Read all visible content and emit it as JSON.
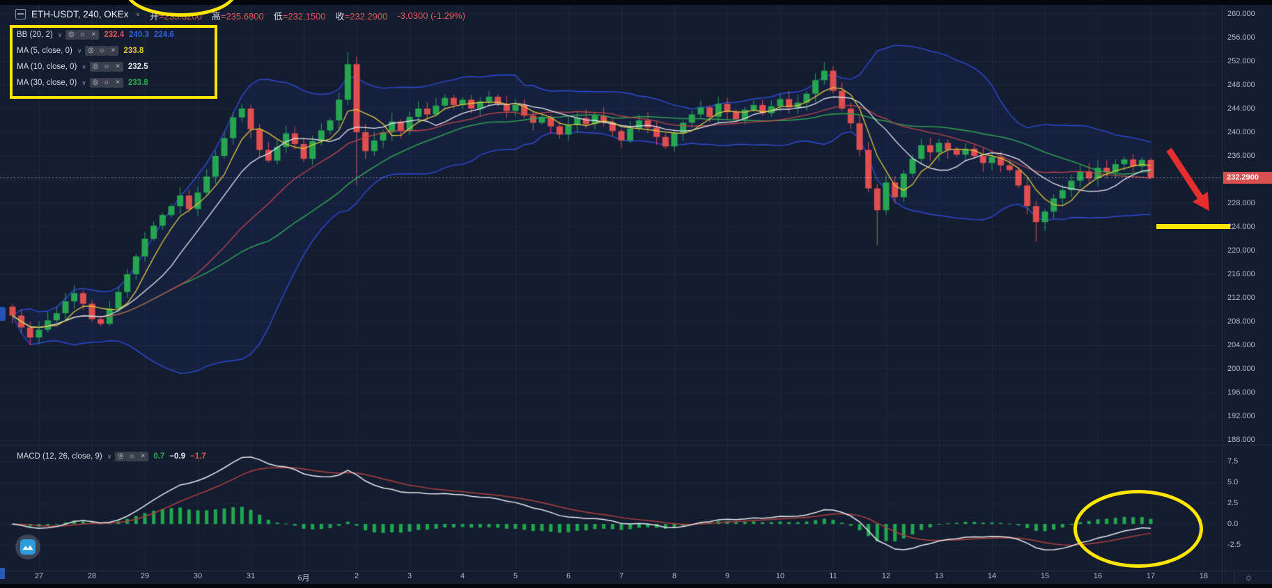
{
  "header": {
    "symbol": "ETH-USDT, 240, OKEx",
    "ohlc_items": [
      {
        "label": "开",
        "value": "235.3200"
      },
      {
        "label": "高",
        "value": "235.6800"
      },
      {
        "label": "低",
        "value": "232.1500"
      },
      {
        "label": "收",
        "value": "232.2900"
      }
    ],
    "change": "-3.0300 (-1.29%)"
  },
  "indicators": {
    "bb": {
      "name": "BB (20, 2)",
      "v1": "232.4",
      "v2": "240.3",
      "v3": "224.6"
    },
    "ma5": {
      "name": "MA (5, close, 0)",
      "value": "233.8"
    },
    "ma10": {
      "name": "MA (10, close, 0)",
      "value": "232.5"
    },
    "ma30": {
      "name": "MA (30, close, 0)",
      "value": "233.8"
    }
  },
  "macd_legend": {
    "name": "MACD (12, 26, close, 9)",
    "hist": "0.7",
    "macd": "−0.9",
    "signal": "−1.7"
  },
  "price_axis": {
    "ticks": [
      "260.000",
      "256.000",
      "252.000",
      "248.000",
      "244.000",
      "240.000",
      "236.000",
      "228.000",
      "224.000",
      "220.000",
      "216.000",
      "212.000",
      "208.000",
      "204.000",
      "200.000",
      "196.000",
      "192.000",
      "188.000"
    ],
    "last_price": "232.2900"
  },
  "macd_axis": {
    "ticks": [
      "7.5",
      "5.0",
      "2.5",
      "0.0",
      "-2.5"
    ]
  },
  "time_axis": {
    "labels": [
      "27",
      "28",
      "29",
      "30",
      "31",
      "6月",
      "2",
      "3",
      "4",
      "5",
      "6",
      "7",
      "8",
      "9",
      "10",
      "11",
      "12",
      "13",
      "14",
      "15",
      "16",
      "17",
      "18"
    ]
  },
  "colors": {
    "background": "#141c30",
    "grid": "#223052",
    "up": "#26a651",
    "down": "#e04f4f",
    "ma5": "#e0c93c",
    "ma10": "#e6e9f0",
    "ma30": "#2f9e4f",
    "bb_basis": "#c04848",
    "bb_band": "#2e4bd8",
    "macd_line": "#e8eaef",
    "signal_line": "#b0413f",
    "hist": "#1fa94f",
    "annotation": "#ffe600",
    "arrow": "#e62e2e",
    "price_label_bg": "#d94f4f",
    "axis_text": "#b6bac6"
  },
  "chart_data": {
    "type": "candlestick+macd",
    "title": "ETH-USDT, 240, OKEx",
    "interval_minutes": 240,
    "candles_per_day": 6,
    "price_axis_range": [
      187.0,
      261.5
    ],
    "macd_axis_range": [
      -3.9,
      7.9
    ],
    "grid": true,
    "last_candle": {
      "open": 235.32,
      "high": 235.68,
      "low": 232.15,
      "close": 232.29,
      "change": -3.03,
      "change_pct": -1.29
    },
    "open_first": 210.5,
    "closes": [
      209.0,
      207.0,
      205.3,
      206.6,
      208.2,
      209.4,
      211.4,
      212.8,
      211.0,
      208.4,
      207.6,
      210.2,
      213.0,
      216.0,
      219.0,
      222.0,
      224.2,
      226.0,
      227.5,
      229.3,
      227.0,
      229.8,
      232.5,
      236.0,
      239.0,
      242.5,
      244.0,
      240.5,
      237.0,
      235.2,
      237.5,
      239.8,
      238.0,
      235.5,
      238.5,
      240.3,
      242.0,
      245.5,
      251.5,
      240.0,
      236.8,
      238.6,
      240.0,
      241.8,
      240.2,
      242.6,
      244.0,
      243.0,
      244.5,
      245.8,
      244.6,
      245.5,
      244.0,
      245.2,
      246.0,
      244.8,
      243.6,
      244.6,
      242.8,
      241.6,
      242.6,
      241.0,
      239.6,
      241.2,
      242.4,
      241.4,
      242.8,
      241.6,
      240.2,
      238.6,
      240.6,
      242.0,
      240.8,
      239.2,
      237.6,
      239.8,
      241.6,
      243.0,
      244.2,
      242.6,
      244.8,
      243.4,
      242.2,
      243.8,
      244.6,
      243.2,
      244.4,
      245.6,
      244.2,
      245.0,
      246.5,
      248.8,
      250.4,
      247.0,
      244.0,
      241.5,
      237.0,
      230.5,
      226.8,
      231.5,
      229.0,
      233.0,
      235.5,
      237.8,
      236.6,
      238.2,
      237.0,
      236.2,
      237.2,
      236.0,
      234.8,
      235.8,
      234.4,
      233.6,
      231.0,
      227.5,
      224.8,
      226.6,
      228.8,
      230.2,
      231.8,
      233.4,
      232.2,
      234.0,
      233.2,
      234.6,
      235.4,
      234.2,
      235.32,
      232.29
    ],
    "wick_overrides": {
      "38": {
        "high": 253.5
      },
      "39": {
        "low": 231.0
      },
      "92": {
        "high": 251.8
      },
      "98": {
        "low": 220.9
      },
      "116": {
        "low": 221.5
      },
      "129": {
        "high": 235.68,
        "low": 232.15
      }
    },
    "overlays": [
      "BB(20,2)",
      "MA(5)",
      "MA(10)",
      "MA(30)"
    ],
    "lower_pane": "MACD(12,26,close,9)",
    "support_line_price": 224.0
  },
  "annotations_meta": {
    "ellipse_top": "yellow highlight ellipse (cut off at top)",
    "rectangle": "yellow rectangle around indicator legend",
    "arrow": "red arrow pointing down-right",
    "line": "yellow horizontal support mark at 224.000",
    "ellipse_macd": "yellow ellipse around rising MACD histogram"
  }
}
